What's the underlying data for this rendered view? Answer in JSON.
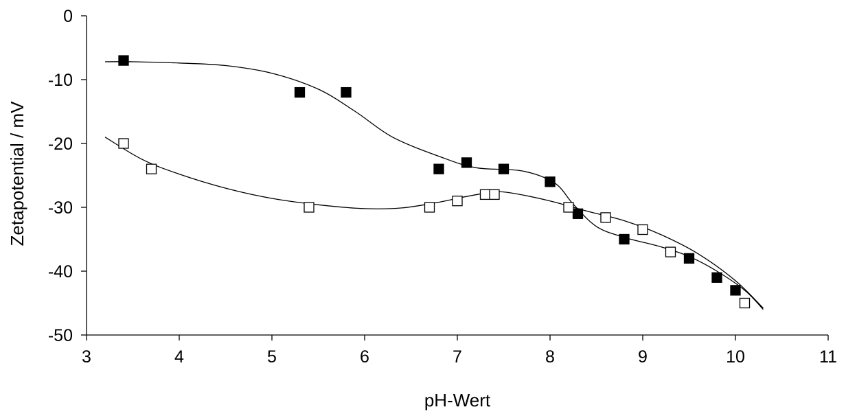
{
  "chart_data": {
    "type": "scatter",
    "title": "",
    "xlabel": "pH-Wert",
    "ylabel": "Zetapotential / mV",
    "xlim": [
      3,
      11
    ],
    "ylim": [
      -50,
      0
    ],
    "xticks": [
      3,
      4,
      5,
      6,
      7,
      8,
      9,
      10,
      11
    ],
    "yticks": [
      0,
      -10,
      -20,
      -30,
      -40,
      -50
    ],
    "grid": false,
    "legend": "none",
    "series": [
      {
        "marker": "filled-square",
        "color": "#000000",
        "points": [
          [
            3.4,
            -7
          ],
          [
            5.3,
            -12
          ],
          [
            5.8,
            -12
          ],
          [
            6.8,
            -24
          ],
          [
            7.1,
            -23
          ],
          [
            7.5,
            -24
          ],
          [
            8.0,
            -26
          ],
          [
            8.3,
            -31
          ],
          [
            8.8,
            -35
          ],
          [
            9.5,
            -38
          ],
          [
            9.8,
            -41
          ],
          [
            10.0,
            -43
          ]
        ],
        "trend": [
          [
            3.2,
            -7.2
          ],
          [
            3.5,
            -7.2
          ],
          [
            4.0,
            -7.4
          ],
          [
            4.5,
            -7.8
          ],
          [
            5.0,
            -9.0
          ],
          [
            5.5,
            -11.5
          ],
          [
            5.9,
            -15.0
          ],
          [
            6.3,
            -19.0
          ],
          [
            6.8,
            -22.0
          ],
          [
            7.2,
            -23.8
          ],
          [
            7.7,
            -24.3
          ],
          [
            8.05,
            -26.2
          ],
          [
            8.25,
            -29.5
          ],
          [
            8.5,
            -33.0
          ],
          [
            8.8,
            -34.7
          ],
          [
            9.2,
            -36.2
          ],
          [
            9.5,
            -37.7
          ],
          [
            9.8,
            -40.0
          ],
          [
            10.1,
            -43.0
          ],
          [
            10.3,
            -46.0
          ]
        ]
      },
      {
        "marker": "open-square",
        "color": "#000000",
        "points": [
          [
            3.4,
            -20
          ],
          [
            3.7,
            -24
          ],
          [
            5.4,
            -30
          ],
          [
            6.7,
            -30
          ],
          [
            7.0,
            -29
          ],
          [
            7.3,
            -28
          ],
          [
            7.4,
            -28
          ],
          [
            8.2,
            -30
          ],
          [
            8.6,
            -31.6
          ],
          [
            9.0,
            -33.5
          ],
          [
            9.3,
            -37
          ],
          [
            10.1,
            -45
          ]
        ],
        "trend": [
          [
            3.2,
            -19.0
          ],
          [
            3.6,
            -22.5
          ],
          [
            4.0,
            -24.8
          ],
          [
            4.5,
            -27.0
          ],
          [
            5.0,
            -28.6
          ],
          [
            5.5,
            -29.6
          ],
          [
            6.0,
            -30.2
          ],
          [
            6.4,
            -30.1
          ],
          [
            6.8,
            -29.2
          ],
          [
            7.1,
            -28.3
          ],
          [
            7.4,
            -27.6
          ],
          [
            7.6,
            -27.8
          ],
          [
            8.0,
            -29.0
          ],
          [
            8.4,
            -30.6
          ],
          [
            8.8,
            -32.1
          ],
          [
            9.2,
            -34.3
          ],
          [
            9.6,
            -37.3
          ],
          [
            10.0,
            -41.5
          ],
          [
            10.3,
            -45.8
          ]
        ]
      }
    ]
  }
}
